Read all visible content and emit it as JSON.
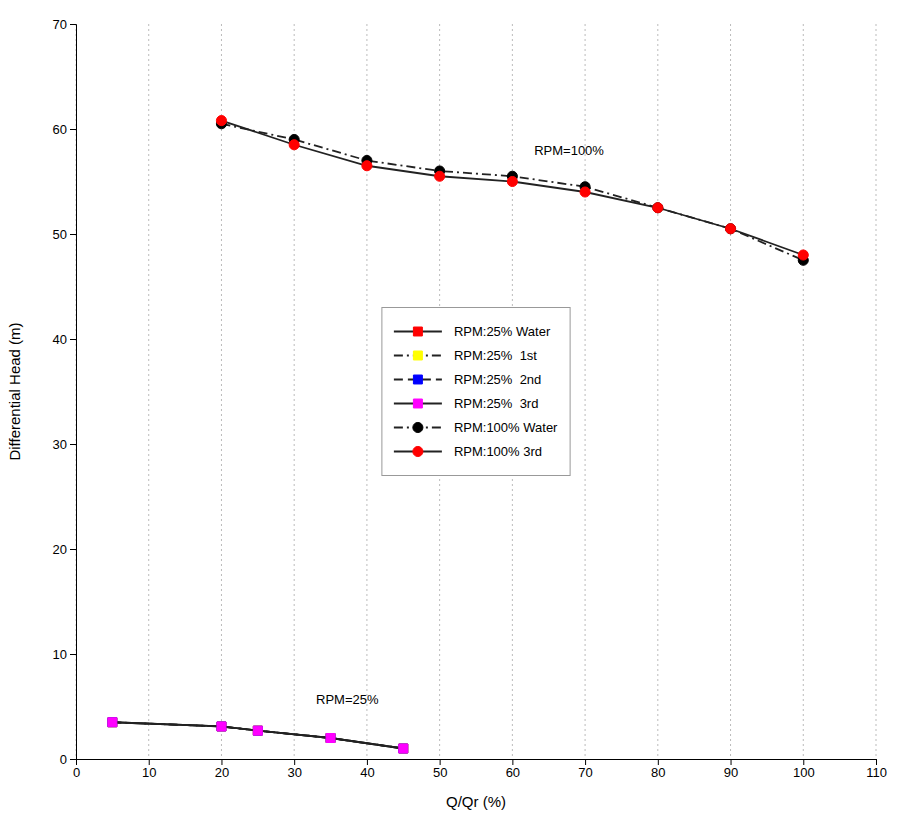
{
  "chart_data": {
    "type": "line",
    "xlabel": "Q/Qr (%)",
    "ylabel": "Differential Head (m)",
    "xlim": [
      0,
      110
    ],
    "ylim": [
      0,
      70
    ],
    "xticks": [
      0,
      10,
      20,
      30,
      40,
      50,
      60,
      70,
      80,
      90,
      100,
      110
    ],
    "yticks": [
      0,
      10,
      20,
      30,
      40,
      50,
      60,
      70
    ],
    "grid": "x",
    "legend": "center",
    "series": [
      {
        "name": "RPM:25% Water",
        "color": "#FF0000",
        "marker": "square",
        "line_style": "solid",
        "x": [
          5,
          20,
          25,
          35,
          45
        ],
        "values": [
          3.5,
          3.1,
          2.7,
          2.0,
          1.0
        ]
      },
      {
        "name": "RPM:25%  1st",
        "color": "#FFFF00",
        "marker": "square",
        "line_style": "dashdot",
        "x": [
          5,
          20,
          25,
          35,
          45
        ],
        "values": [
          3.5,
          3.1,
          2.7,
          2.0,
          1.0
        ]
      },
      {
        "name": "RPM:25%  2nd",
        "color": "#0000FF",
        "marker": "square",
        "line_style": "dashed",
        "x": [
          5,
          20,
          25,
          35,
          45
        ],
        "values": [
          3.5,
          3.1,
          2.7,
          2.0,
          1.0
        ]
      },
      {
        "name": "RPM:25%  3rd",
        "color": "#FF00FF",
        "marker": "square",
        "line_style": "solid",
        "x": [
          5,
          20,
          25,
          35,
          45
        ],
        "values": [
          3.5,
          3.1,
          2.7,
          2.0,
          1.0
        ]
      },
      {
        "name": "RPM:100% Water",
        "color": "#000000",
        "marker": "circle",
        "line_style": "dashdot",
        "x": [
          20,
          30,
          40,
          50,
          60,
          70,
          80,
          90,
          100
        ],
        "values": [
          60.5,
          59.0,
          57.0,
          56.0,
          55.5,
          54.5,
          52.5,
          50.5,
          47.5
        ]
      },
      {
        "name": "RPM:100% 3rd",
        "color": "#FF0000",
        "marker": "circle",
        "line_style": "solid",
        "x": [
          20,
          30,
          40,
          50,
          60,
          70,
          80,
          90,
          100
        ],
        "values": [
          60.8,
          58.5,
          56.5,
          55.5,
          55.0,
          54.0,
          52.5,
          50.5,
          48.0
        ]
      }
    ],
    "annotations": [
      {
        "text": "RPM=25%",
        "x": 33,
        "y": 5.2
      },
      {
        "text": "RPM=100%",
        "x": 63,
        "y": 57.5
      }
    ]
  }
}
